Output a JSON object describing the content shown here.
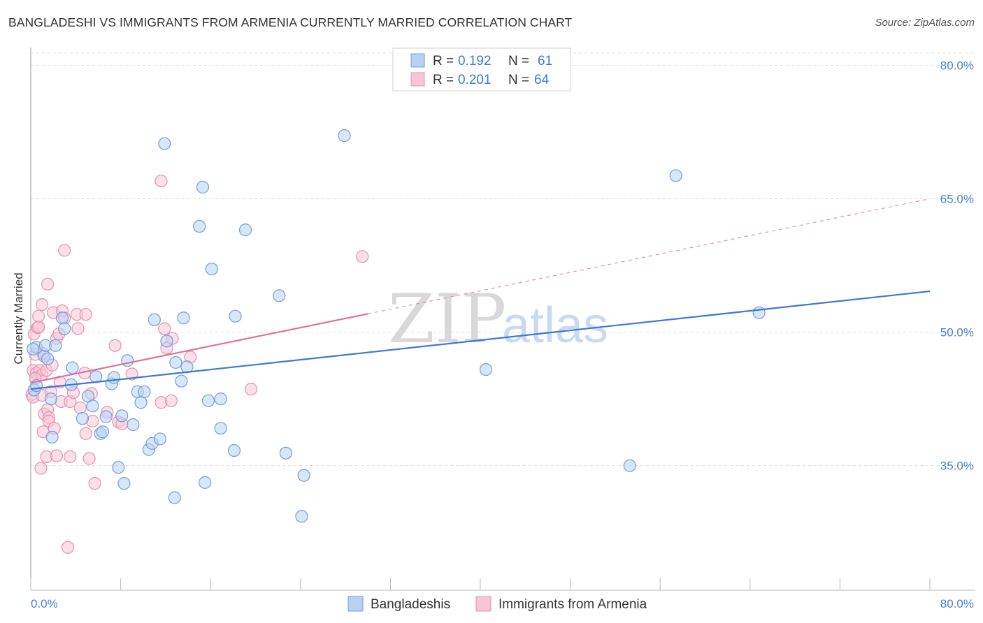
{
  "title": "BANGLADESHI VS IMMIGRANTS FROM ARMENIA CURRENTLY MARRIED CORRELATION CHART",
  "source": "Source: ZipAtlas.com",
  "watermark": {
    "zip": "ZIP",
    "atlas": "atlas"
  },
  "colors": {
    "blue_fill": "#b8d1f3",
    "blue_stroke": "#6f9fe0",
    "blue_line": "#3b78d8",
    "pink_fill": "#f7c6d6",
    "pink_stroke": "#e98fae",
    "pink_line": "#e0709a",
    "grid": "#dddddd",
    "accent_text": "#4a7fd1"
  },
  "legend": {
    "rows": [
      {
        "r_label": "R = ",
        "r_value": "0.192",
        "n_label": "N = ",
        "n_value": "61",
        "series": "blue"
      },
      {
        "r_label": "R = ",
        "r_value": "0.201",
        "n_label": "N = ",
        "n_value": "64",
        "series": "pink"
      }
    ]
  },
  "bottom_legend": [
    "Bangladeshis",
    "Immigrants from Armenia"
  ],
  "chart_data": {
    "type": "scatter",
    "title": "BANGLADESHI VS IMMIGRANTS FROM ARMENIA CURRENTLY MARRIED CORRELATION CHART",
    "xlabel": "",
    "ylabel": "Currently Married",
    "xlim": [
      0,
      80
    ],
    "ylim": [
      21,
      82
    ],
    "x_tick_labels": [
      "0.0%",
      "80.0%"
    ],
    "y_ticks": [
      35,
      50,
      65,
      80
    ],
    "y_tick_labels": [
      "35.0%",
      "50.0%",
      "65.0%",
      "80.0%"
    ],
    "grid": true,
    "series": [
      {
        "name": "Bangladeshis",
        "color": "blue",
        "R": 0.192,
        "N": 61,
        "trend": {
          "x0": 0,
          "y0": 43.6,
          "x1": 80,
          "y1": 54.6,
          "dashed_after": null
        },
        "points": [
          [
            0.3,
            43.5
          ],
          [
            0.5,
            44.0
          ],
          [
            0.5,
            48.3
          ],
          [
            1.2,
            47.3
          ],
          [
            1.3,
            48.5
          ],
          [
            1.5,
            47.0
          ],
          [
            1.8,
            42.5
          ],
          [
            1.9,
            38.2
          ],
          [
            2.2,
            48.5
          ],
          [
            2.8,
            51.6
          ],
          [
            3.0,
            50.4
          ],
          [
            3.6,
            44.1
          ],
          [
            3.7,
            46.0
          ],
          [
            4.6,
            40.3
          ],
          [
            5.1,
            42.8
          ],
          [
            5.5,
            41.7
          ],
          [
            5.8,
            45.0
          ],
          [
            6.2,
            38.6
          ],
          [
            6.4,
            38.8
          ],
          [
            6.7,
            40.5
          ],
          [
            7.2,
            44.2
          ],
          [
            7.4,
            44.9
          ],
          [
            7.8,
            34.8
          ],
          [
            8.1,
            40.6
          ],
          [
            8.3,
            33.0
          ],
          [
            8.6,
            46.8
          ],
          [
            9.1,
            39.6
          ],
          [
            9.5,
            43.3
          ],
          [
            9.8,
            42.1
          ],
          [
            10.1,
            43.3
          ],
          [
            10.5,
            36.8
          ],
          [
            10.8,
            37.5
          ],
          [
            11.0,
            51.4
          ],
          [
            11.5,
            38.0
          ],
          [
            11.9,
            71.2
          ],
          [
            12.1,
            49.0
          ],
          [
            12.8,
            31.4
          ],
          [
            12.9,
            46.6
          ],
          [
            13.4,
            44.5
          ],
          [
            13.6,
            51.6
          ],
          [
            13.9,
            46.1
          ],
          [
            15.0,
            61.9
          ],
          [
            15.3,
            66.3
          ],
          [
            15.5,
            33.1
          ],
          [
            15.8,
            42.3
          ],
          [
            16.1,
            57.1
          ],
          [
            16.9,
            42.5
          ],
          [
            16.9,
            39.2
          ],
          [
            18.1,
            36.7
          ],
          [
            18.2,
            51.8
          ],
          [
            19.1,
            61.5
          ],
          [
            22.1,
            54.1
          ],
          [
            22.7,
            36.4
          ],
          [
            24.1,
            29.3
          ],
          [
            24.3,
            33.9
          ],
          [
            27.9,
            72.1
          ],
          [
            40.5,
            45.8
          ],
          [
            53.3,
            35.0
          ],
          [
            57.4,
            67.6
          ],
          [
            64.8,
            52.2
          ],
          [
            0.2,
            48.1
          ]
        ]
      },
      {
        "name": "Immigrants from Armenia",
        "color": "pink",
        "R": 0.201,
        "N": 64,
        "trend": {
          "x0": 0,
          "y0": 44.3,
          "x1": 80,
          "y1": 65.0,
          "dashed_after": 30.0
        },
        "points": [
          [
            0.1,
            43.0
          ],
          [
            0.2,
            42.7
          ],
          [
            0.2,
            45.7
          ],
          [
            0.3,
            49.8
          ],
          [
            0.4,
            47.5
          ],
          [
            0.5,
            45.4
          ],
          [
            0.6,
            50.5
          ],
          [
            0.7,
            50.6
          ],
          [
            0.7,
            51.8
          ],
          [
            0.8,
            45.7
          ],
          [
            0.9,
            34.7
          ],
          [
            1.0,
            53.1
          ],
          [
            1.0,
            45.2
          ],
          [
            1.0,
            42.9
          ],
          [
            1.1,
            38.8
          ],
          [
            1.2,
            40.8
          ],
          [
            1.4,
            45.7
          ],
          [
            1.4,
            36.0
          ],
          [
            1.5,
            55.4
          ],
          [
            1.5,
            41.3
          ],
          [
            1.6,
            40.4
          ],
          [
            1.6,
            40.0
          ],
          [
            1.8,
            43.3
          ],
          [
            1.9,
            46.3
          ],
          [
            2.0,
            52.2
          ],
          [
            2.1,
            39.2
          ],
          [
            2.3,
            36.1
          ],
          [
            2.3,
            49.3
          ],
          [
            2.5,
            49.8
          ],
          [
            2.6,
            44.4
          ],
          [
            2.7,
            42.2
          ],
          [
            2.8,
            52.4
          ],
          [
            3.0,
            59.2
          ],
          [
            3.0,
            51.6
          ],
          [
            3.3,
            25.8
          ],
          [
            3.5,
            36.0
          ],
          [
            3.5,
            42.2
          ],
          [
            3.8,
            43.2
          ],
          [
            4.1,
            52.0
          ],
          [
            4.2,
            50.4
          ],
          [
            4.4,
            41.5
          ],
          [
            4.8,
            45.4
          ],
          [
            4.9,
            52.0
          ],
          [
            4.9,
            38.6
          ],
          [
            5.2,
            35.8
          ],
          [
            5.4,
            43.1
          ],
          [
            5.5,
            40.0
          ],
          [
            5.7,
            33.0
          ],
          [
            6.8,
            41.0
          ],
          [
            7.5,
            48.5
          ],
          [
            7.8,
            39.9
          ],
          [
            8.1,
            39.7
          ],
          [
            9.0,
            45.3
          ],
          [
            11.6,
            67.0
          ],
          [
            11.6,
            42.1
          ],
          [
            11.9,
            50.4
          ],
          [
            12.1,
            48.2
          ],
          [
            12.6,
            49.3
          ],
          [
            12.5,
            42.3
          ],
          [
            14.2,
            47.2
          ],
          [
            19.6,
            43.6
          ],
          [
            29.5,
            58.5
          ],
          [
            1.1,
            47.6
          ],
          [
            0.4,
            44.8
          ]
        ]
      }
    ]
  }
}
